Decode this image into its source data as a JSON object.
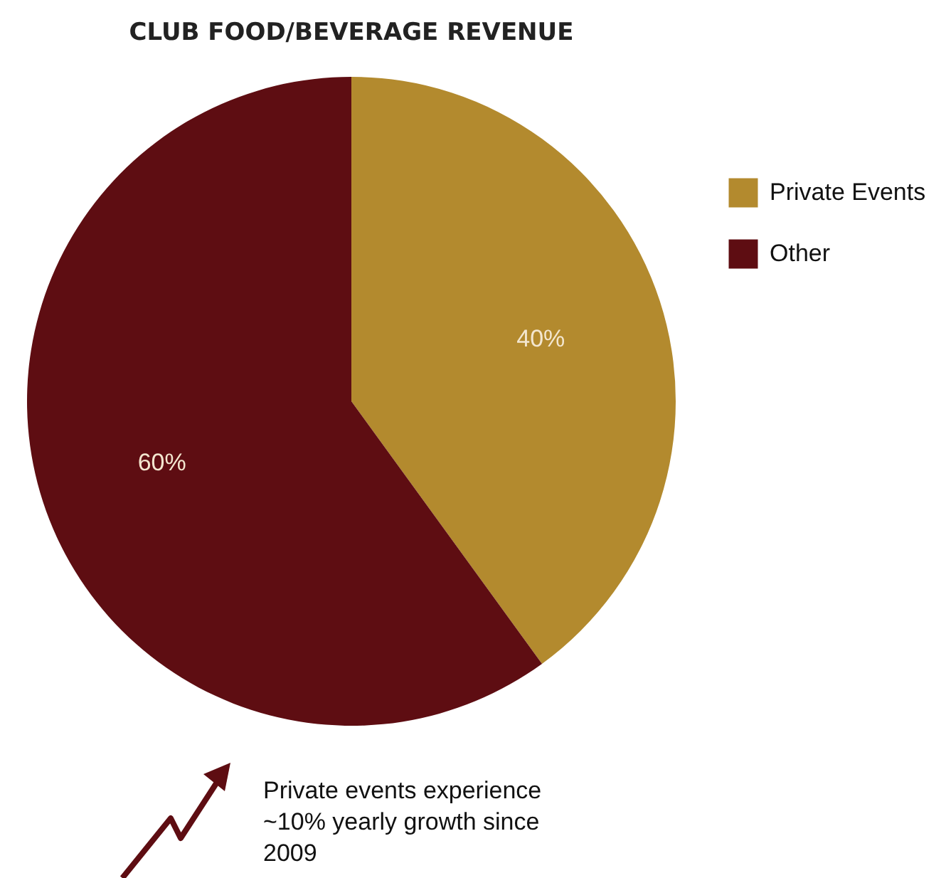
{
  "chart_data": {
    "type": "pie",
    "title": "CLUB FOOD/BEVERAGE REVENUE",
    "categories": [
      "Private Events",
      "Other"
    ],
    "values": [
      40,
      60
    ],
    "colors": [
      "#b38a2e",
      "#5e0d12"
    ],
    "value_labels": [
      "40%",
      "60%"
    ],
    "legend": "right",
    "annotations": [
      "Private events experience ~10% yearly growth since 2009"
    ]
  }
}
